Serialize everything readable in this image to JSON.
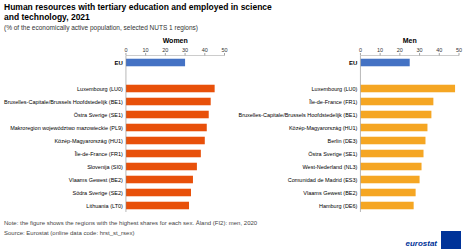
{
  "chart_data": [
    {
      "type": "bar",
      "orientation": "horizontal",
      "title": "Human resources with tertiary education and employed in science\nand technology, 2021",
      "subtitle": "(% of the economically active population,  selected NUTS  1 regions)",
      "xlabel": "Women",
      "categories": [
        "EU",
        "Luxembourg (LU0)",
        "Bruxelles-Capitale/Brussels Hoofdstedelijk (BE1)",
        "Östra Sverige (SE1)",
        "Makroregion województwo mazowieckie (PL9)",
        "Közép-Magyarország (HU1)",
        "Île-de-France (FR1)",
        "Slovenija (SI0)",
        "Vlaams Gewest (BE2)",
        "Södra Sverige (SE2)",
        "Lithuania (LT0)"
      ],
      "values": [
        30,
        45,
        43,
        42,
        41,
        40,
        38,
        36,
        34,
        33,
        32
      ],
      "colors": [
        "#4472C4",
        "#E8500A",
        "#E8500A",
        "#E8500A",
        "#E8500A",
        "#E8500A",
        "#E8500A",
        "#E8500A",
        "#E8500A",
        "#E8500A",
        "#E8500A"
      ],
      "xlim": [
        0,
        50
      ],
      "xticks": [
        0,
        10,
        20,
        30,
        40,
        50
      ],
      "grid": false,
      "annotations": [
        "Note: the figure shows the regions with the highest shares for each sex. Åland (FI2): men, 2020",
        "Source: Eurostat (online data code: hrst_st_rsex)",
        "eurostat"
      ]
    },
    {
      "type": "bar",
      "orientation": "horizontal",
      "xlabel": "Men",
      "categories": [
        "EU",
        "Luxembourg (LU0)",
        "Île-de-France (FR1)",
        "Bruxelles-Capitale/Brussels Hoofdstedelijk (BE1)",
        "Közép-Magyarország (HU1)",
        "Berlin (DE3)",
        "Östra Sverige (SE1)",
        "West-Nederland (NL3)",
        "Comunidad de Madrid (ES3)",
        "Vlaams Gewest (BE2)",
        "Hamburg (DE6)"
      ],
      "values": [
        25,
        48,
        37,
        36,
        34,
        33,
        32,
        31,
        30,
        28,
        27
      ],
      "colors": [
        "#4472C4",
        "#F5A623",
        "#F5A623",
        "#F5A623",
        "#F5A623",
        "#F5A623",
        "#F5A623",
        "#F5A623",
        "#F5A623",
        "#F5A623",
        "#F5A623"
      ],
      "xlim": [
        0,
        50
      ],
      "xticks": [
        0,
        10,
        20,
        30,
        40,
        50
      ],
      "grid": false
    }
  ]
}
